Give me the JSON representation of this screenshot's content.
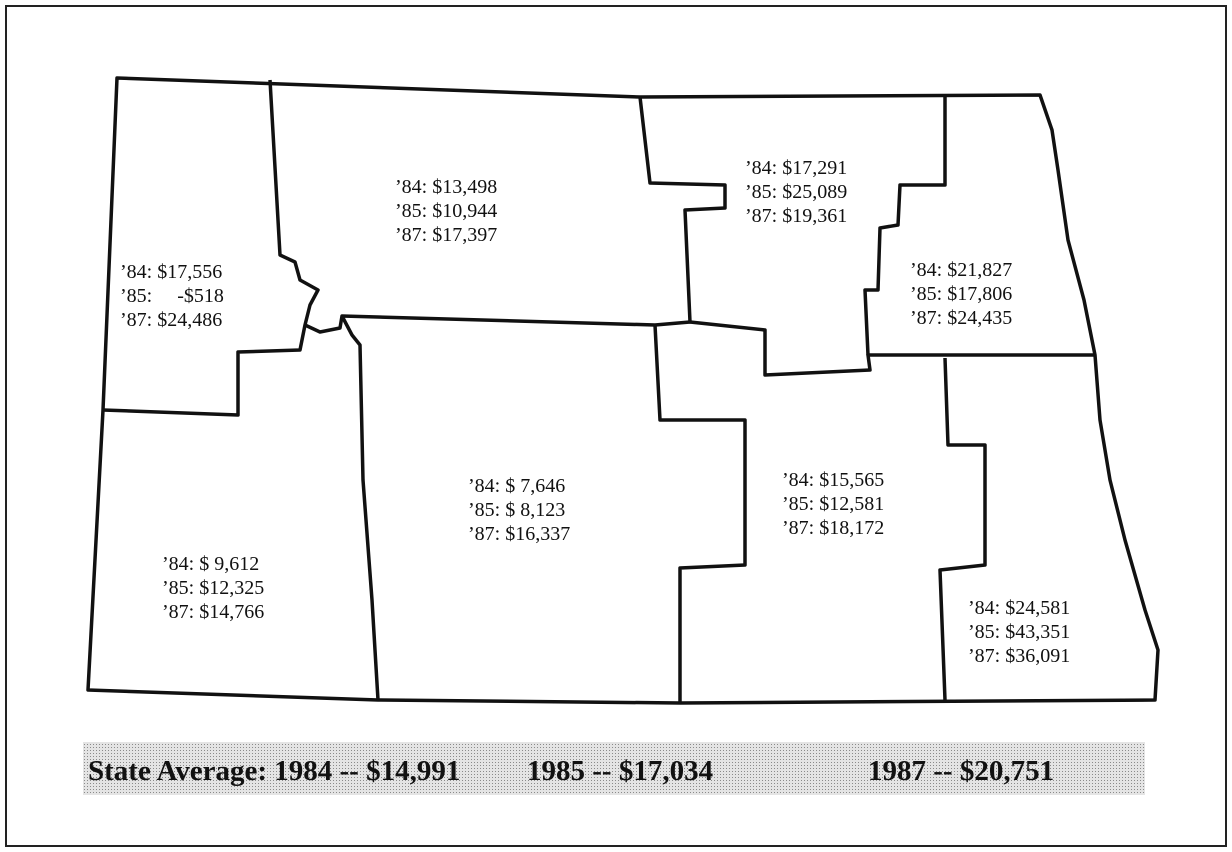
{
  "regions": [
    {
      "lines": [
        "’84: $17,556",
        "’85:     -$518",
        "’87: $24,486"
      ]
    },
    {
      "lines": [
        "’84: $13,498",
        "’85: $10,944",
        "’87: $17,397"
      ]
    },
    {
      "lines": [
        "’84: $17,291",
        "’85: $25,089",
        "’87: $19,361"
      ]
    },
    {
      "lines": [
        "’84: $21,827",
        "’85: $17,806",
        "’87: $24,435"
      ]
    },
    {
      "lines": [
        "’84: $ 9,612",
        "’85: $12,325",
        "’87: $14,766"
      ]
    },
    {
      "lines": [
        "’84: $ 7,646",
        "’85: $ 8,123",
        "’87: $16,337"
      ]
    },
    {
      "lines": [
        "’84: $15,565",
        "’85: $12,581",
        "’87: $18,172"
      ]
    },
    {
      "lines": [
        "’84: $24,581",
        "’85: $43,351",
        "’87: $36,091"
      ]
    }
  ],
  "state_average": [
    "State Average: 1984 -- $14,991",
    "1985 -- $17,034",
    "1987 -- $20,751"
  ]
}
